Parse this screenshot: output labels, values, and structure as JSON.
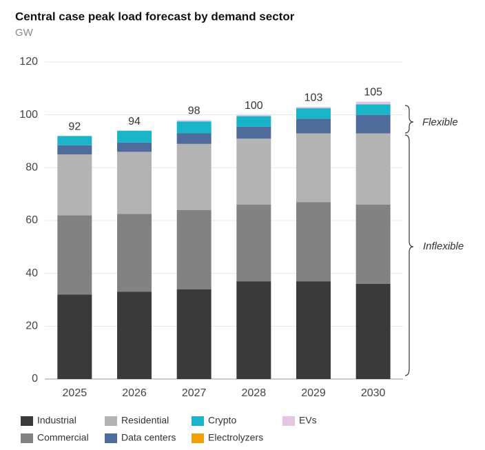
{
  "chart_data": {
    "type": "stacked-bar",
    "title": "Central case peak load forecast by demand sector",
    "subtitle": "GW",
    "categories": [
      "2025",
      "2026",
      "2027",
      "2028",
      "2029",
      "2030"
    ],
    "series": [
      {
        "name": "Industrial",
        "color": "#3a3a3a",
        "values": [
          32,
          33,
          34,
          37,
          37,
          36
        ]
      },
      {
        "name": "Commercial",
        "color": "#828282",
        "values": [
          30,
          29.5,
          30,
          29,
          30,
          30
        ]
      },
      {
        "name": "Residential",
        "color": "#b3b3b3",
        "values": [
          23,
          23.5,
          25,
          25,
          26,
          27
        ]
      },
      {
        "name": "Data centers",
        "color": "#4f6b9c",
        "values": [
          3.5,
          3.5,
          4,
          4.5,
          5.5,
          7
        ]
      },
      {
        "name": "Crypto",
        "color": "#1ab4c8",
        "values": [
          3.5,
          4.5,
          4.5,
          4,
          4,
          4
        ]
      },
      {
        "name": "Electrolyzers",
        "color": "#f29f05",
        "values": [
          0,
          0,
          0,
          0,
          0,
          0
        ]
      },
      {
        "name": "EVs",
        "color": "#e5c6e2",
        "values": [
          0,
          0,
          0.5,
          0.5,
          0.5,
          1
        ]
      }
    ],
    "totals": [
      92,
      94,
      98,
      100,
      103,
      105
    ],
    "ylim": [
      0,
      120
    ],
    "yticks": [
      0,
      20,
      40,
      60,
      80,
      100,
      120
    ],
    "grid": true,
    "annotations": [
      "Flexible",
      "Inflexible"
    ]
  }
}
